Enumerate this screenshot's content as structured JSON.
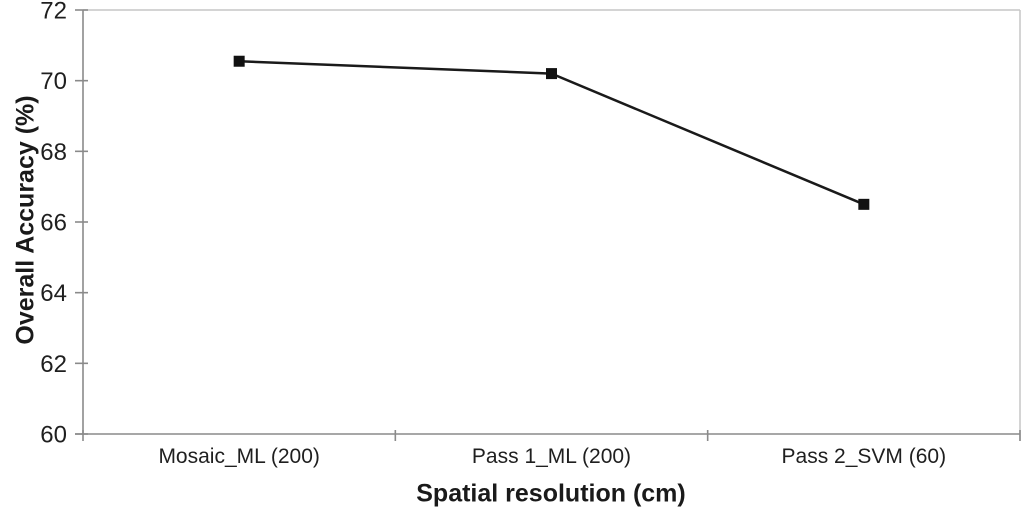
{
  "chart_data": {
    "type": "line",
    "title": "",
    "xlabel": "Spatial resolution (cm)",
    "ylabel": "Overall Accuracy (%)",
    "categories": [
      "Mosaic_ML (200)",
      "Pass 1_ML (200)",
      "Pass 2_SVM (60)"
    ],
    "series": [
      {
        "name": "Overall Accuracy",
        "values": [
          70.55,
          70.2,
          66.5
        ]
      }
    ],
    "ylim": [
      60,
      72
    ],
    "yticks": [
      60,
      62,
      64,
      66,
      68,
      70,
      72
    ],
    "ytick_step": 2,
    "grid": false,
    "legend": "none",
    "marker": "square",
    "colors": {
      "line": "#1a1a1a",
      "marker": "#111111",
      "axis": "#8a8a8a",
      "frame": "#c6c6c6",
      "text": "#1f1f1f",
      "background": "#ffffff"
    }
  }
}
